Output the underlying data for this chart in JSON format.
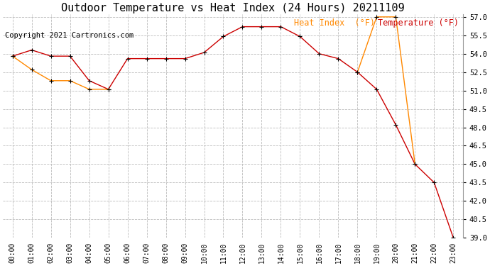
{
  "title": "Outdoor Temperature vs Heat Index (24 Hours) 20211109",
  "copyright": "Copyright 2021 Cartronics.com",
  "legend_heat": "Heat Index  (°F)",
  "legend_temp": "Temperature (°F)",
  "hours": [
    "00:00",
    "01:00",
    "02:00",
    "03:00",
    "04:00",
    "05:00",
    "06:00",
    "07:00",
    "08:00",
    "09:00",
    "10:00",
    "11:00",
    "12:00",
    "13:00",
    "14:00",
    "15:00",
    "16:00",
    "17:00",
    "18:00",
    "19:00",
    "20:00",
    "21:00",
    "22:00",
    "23:00"
  ],
  "temperature": [
    53.8,
    54.3,
    53.8,
    53.8,
    51.8,
    51.1,
    53.6,
    53.6,
    53.6,
    53.6,
    54.1,
    55.4,
    56.2,
    56.2,
    56.2,
    55.4,
    54.0,
    53.6,
    52.5,
    51.1,
    48.2,
    45.0,
    43.5,
    39.0
  ],
  "heat_index": [
    53.8,
    52.7,
    51.8,
    51.8,
    51.1,
    51.1,
    null,
    null,
    null,
    null,
    null,
    null,
    null,
    null,
    null,
    null,
    null,
    null,
    52.5,
    57.0,
    57.0,
    45.0,
    null,
    null
  ],
  "temp_color": "#cc0000",
  "heat_color": "#ff8800",
  "bg_color": "#ffffff",
  "grid_color": "#bbbbbb",
  "ylim_min": 39.0,
  "ylim_max": 57.0,
  "ytick_step": 1.5,
  "title_fontsize": 11,
  "copyright_fontsize": 7.5,
  "legend_fontsize": 8.5
}
